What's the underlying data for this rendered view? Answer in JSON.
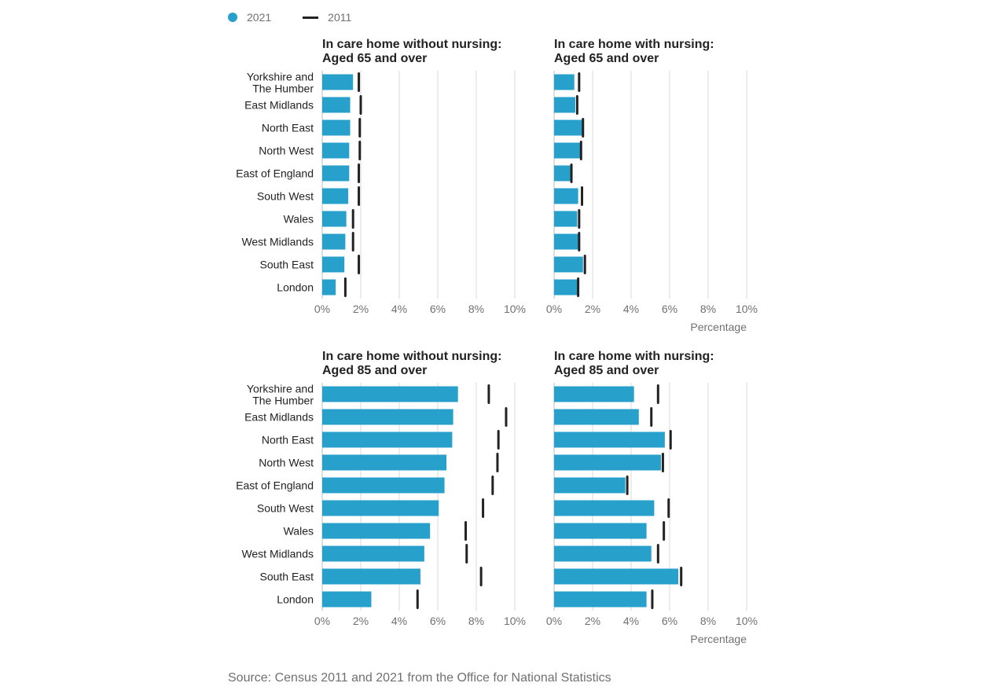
{
  "legend": {
    "series_2021": "2021",
    "series_2011": "2011"
  },
  "source": "Source: Census 2011 and 2021 from the Office for National Statistics",
  "colors": {
    "bar_2021": "#27a0cc",
    "marker_2011": "#222222",
    "grid": "#d9d9d9"
  },
  "chart_data": [
    {
      "type": "bar",
      "orientation": "horizontal",
      "title": [
        "In care home without nursing:",
        "Aged 65 and over"
      ],
      "categories": [
        "Yorkshire and The Humber",
        "East Midlands",
        "North East",
        "North West",
        "East of England",
        "South West",
        "Wales",
        "West Midlands",
        "South East",
        "London"
      ],
      "series": [
        {
          "name": "2021",
          "values": [
            1.6,
            1.45,
            1.45,
            1.4,
            1.4,
            1.35,
            1.25,
            1.2,
            1.15,
            0.7
          ]
        },
        {
          "name": "2011",
          "values": [
            1.9,
            2.0,
            1.95,
            1.95,
            1.9,
            1.9,
            1.6,
            1.6,
            1.9,
            1.2
          ]
        }
      ],
      "xlim": [
        0,
        10
      ],
      "xticks": [
        "0%",
        "2%",
        "4%",
        "6%",
        "8%",
        "10%"
      ],
      "xlabel": ""
    },
    {
      "type": "bar",
      "orientation": "horizontal",
      "title": [
        "In care home with nursing:",
        "Aged 65 and over"
      ],
      "categories": [
        "Yorkshire and The Humber",
        "East Midlands",
        "North East",
        "North West",
        "East of England",
        "South West",
        "Wales",
        "West Midlands",
        "South East",
        "London"
      ],
      "series": [
        {
          "name": "2021",
          "values": [
            1.05,
            1.1,
            1.45,
            1.35,
            0.9,
            1.25,
            1.2,
            1.3,
            1.5,
            1.25
          ]
        },
        {
          "name": "2011",
          "values": [
            1.3,
            1.2,
            1.5,
            1.4,
            0.9,
            1.45,
            1.3,
            1.3,
            1.6,
            1.25
          ]
        }
      ],
      "xlim": [
        0,
        10
      ],
      "xticks": [
        "0%",
        "2%",
        "4%",
        "6%",
        "8%",
        "10%"
      ],
      "xlabel": "Percentage"
    },
    {
      "type": "bar",
      "orientation": "horizontal",
      "title": [
        "In care home without nursing:",
        "Aged 85 and over"
      ],
      "categories": [
        "Yorkshire and The Humber",
        "East Midlands",
        "North East",
        "North West",
        "East of England",
        "South West",
        "Wales",
        "West Midlands",
        "South East",
        "London"
      ],
      "series": [
        {
          "name": "2021",
          "values": [
            7.05,
            6.8,
            6.75,
            6.45,
            6.35,
            6.05,
            5.6,
            5.3,
            5.1,
            2.55
          ]
        },
        {
          "name": "2011",
          "values": [
            8.65,
            9.55,
            9.15,
            9.1,
            8.85,
            8.35,
            7.45,
            7.5,
            8.25,
            4.95
          ]
        }
      ],
      "xlim": [
        0,
        10
      ],
      "xticks": [
        "0%",
        "2%",
        "4%",
        "6%",
        "8%",
        "10%"
      ],
      "xlabel": ""
    },
    {
      "type": "bar",
      "orientation": "horizontal",
      "title": [
        "In care home with nursing:",
        "Aged 85 and over"
      ],
      "categories": [
        "Yorkshire and The Humber",
        "East Midlands",
        "North East",
        "North West",
        "East of England",
        "South West",
        "Wales",
        "West Midlands",
        "South East",
        "London"
      ],
      "series": [
        {
          "name": "2021",
          "values": [
            4.15,
            4.4,
            5.75,
            5.55,
            3.7,
            5.2,
            4.8,
            5.05,
            6.45,
            4.8
          ]
        },
        {
          "name": "2011",
          "values": [
            5.4,
            5.05,
            6.05,
            5.65,
            3.8,
            5.95,
            5.7,
            5.4,
            6.6,
            5.1
          ]
        }
      ],
      "xlim": [
        0,
        10
      ],
      "xticks": [
        "0%",
        "2%",
        "4%",
        "6%",
        "8%",
        "10%"
      ],
      "xlabel": "Percentage"
    }
  ]
}
